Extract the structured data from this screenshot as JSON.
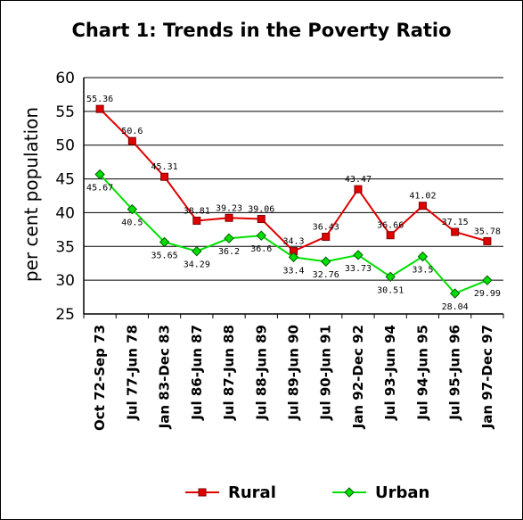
{
  "chart_data": {
    "type": "line",
    "title": "Chart 1: Trends in the Poverty Ratio",
    "xlabel": "",
    "ylabel": "per cent population",
    "ylim": [
      25,
      60
    ],
    "yticks": [
      25,
      30,
      35,
      40,
      45,
      50,
      55,
      60
    ],
    "grid": "horizontal",
    "legend": "bottom",
    "categories": [
      "Oct 72-Sep 73",
      "Jul 77-Jun 78",
      "Jan 83-Dec 83",
      "Jul 86-Jun 87",
      "Jul 87-Jun 88",
      "Jul 88-Jun 89",
      "Jul 89-Jun 90",
      "Jul 90-Jun 91",
      "Jan 92-Dec 92",
      "Jul 93-Jun 94",
      "Jul 94-Jun 95",
      "Jul 95-Jun 96",
      "Jan 97-Dec 97"
    ],
    "series": [
      {
        "name": "Rural",
        "color": "#e00000",
        "marker": "square",
        "values": [
          55.36,
          50.6,
          45.31,
          38.81,
          39.23,
          39.06,
          34.3,
          36.43,
          43.47,
          36.66,
          41.02,
          37.15,
          35.78
        ],
        "labels": [
          "55.36",
          "50.6",
          "45.31",
          "38.81",
          "39.23",
          "39.06",
          "34.3",
          "36.43",
          "43.47",
          "36.66",
          "41.02",
          "37.15",
          "35.78"
        ]
      },
      {
        "name": "Urban",
        "color": "#00e000",
        "marker": "diamond",
        "values": [
          45.67,
          40.5,
          35.65,
          34.29,
          36.2,
          36.6,
          33.4,
          32.76,
          33.73,
          30.51,
          33.5,
          28.04,
          29.99
        ],
        "labels": [
          "45.67",
          "40.5",
          "35.65",
          "34.29",
          "36.2",
          "36.6",
          "33.4",
          "32.76",
          "33.73",
          "30.51",
          "33.5",
          "28.04",
          "29.99"
        ]
      }
    ]
  }
}
